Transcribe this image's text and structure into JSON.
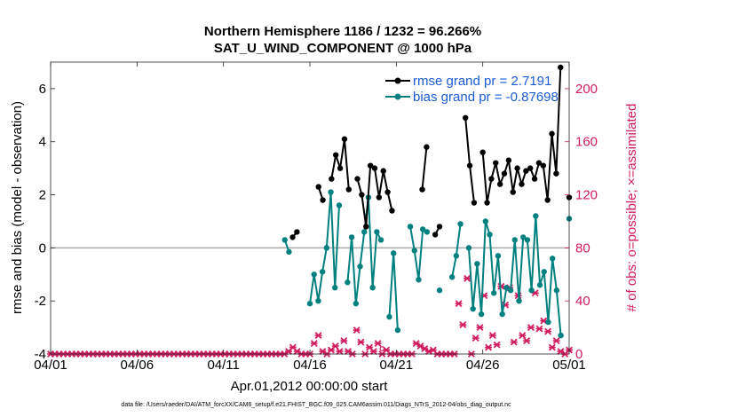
{
  "chart_data": {
    "type": "line",
    "title_line1": "Northern Hemisphere 1186 / 1232 = 96.266%",
    "title_line2": "SAT_U_WIND_COMPONENT @ 1000 hPa",
    "xlabel": "Apr.01,2012 00:00:00 start",
    "ylabel_left": "rmse and bias (model - observation)",
    "ylabel_right": "# of obs: o=possible; ×=assimilated",
    "footnote": "data file: /Users/raeder/DAI/ATM_forcXX/CAM6_setup/f.e21.FHIST_BGC.f09_025.CAM6assim.011/Diags_NTrS_2012-04/obs_diag_output.nc",
    "xlim": [
      0,
      30
    ],
    "ylim_left": [
      -4,
      7
    ],
    "ylim_right": [
      0,
      220
    ],
    "x_ticks": [
      0,
      5,
      10,
      15,
      20,
      25,
      30
    ],
    "x_tick_labels": [
      "04/01",
      "04/06",
      "04/11",
      "04/16",
      "04/21",
      "04/26",
      "05/01"
    ],
    "y_ticks_left": [
      -4,
      -2,
      0,
      2,
      4,
      6
    ],
    "y_tick_labels_left": [
      "-4",
      "-2",
      "0",
      "2",
      "4",
      "6"
    ],
    "y_ticks_right": [
      0,
      40,
      80,
      120,
      160,
      200
    ],
    "y_tick_labels_right": [
      "0",
      "40",
      "80",
      "120",
      "160",
      "200"
    ],
    "colors": {
      "rmse": "#000000",
      "bias": "#00807f",
      "obs": "#d11c5f",
      "legend_text": "#1a5bd6",
      "zero_line": "#aaaaaa"
    },
    "series": [
      {
        "name": "rmse grand pr = 2.7191",
        "values": [
          null,
          null,
          null,
          null,
          null,
          null,
          null,
          null,
          null,
          null,
          null,
          null,
          null,
          null,
          null,
          null,
          null,
          null,
          null,
          null,
          null,
          null,
          null,
          null,
          null,
          null,
          null,
          null,
          null,
          null,
          null,
          null,
          null,
          null,
          null,
          null,
          null,
          null,
          null,
          null,
          null,
          null,
          null,
          null,
          null,
          null,
          null,
          null,
          null,
          null,
          null,
          null,
          null,
          null,
          null,
          null,
          0.4,
          0.6,
          null,
          null,
          null,
          null,
          2.3,
          1.8,
          null,
          2.6,
          3.5,
          3.0,
          4.1,
          2.2,
          null,
          2.6,
          2.0,
          0.8,
          3.1,
          3.0,
          1.9,
          2.9,
          2.1,
          1.4,
          null,
          null,
          null,
          null,
          null,
          null,
          2.2,
          3.8,
          null,
          0.5,
          0.8,
          null,
          null,
          null,
          null,
          null,
          4.9,
          3.1,
          1.7,
          null,
          3.6,
          1.7,
          2.6,
          3.2,
          2.4,
          2.8,
          3.3,
          2.1,
          3.0,
          2.4,
          2.9,
          3.0,
          2.6,
          3.2,
          3.1,
          1.8,
          4.3,
          2.8,
          6.8,
          null,
          1.9
        ]
      },
      {
        "name": "bias grand pr = -0.87698",
        "values": [
          null,
          null,
          null,
          null,
          null,
          null,
          null,
          null,
          null,
          null,
          null,
          null,
          null,
          null,
          null,
          null,
          null,
          null,
          null,
          null,
          null,
          null,
          null,
          null,
          null,
          null,
          null,
          null,
          null,
          null,
          null,
          null,
          null,
          null,
          null,
          null,
          null,
          null,
          null,
          null,
          null,
          null,
          null,
          null,
          null,
          null,
          null,
          null,
          null,
          null,
          null,
          null,
          null,
          null,
          null,
          null,
          0.3,
          -0.15,
          null,
          null,
          null,
          null,
          -2.1,
          -1.0,
          -2.0,
          -0.9,
          0.0,
          2.1,
          -1.5,
          1.6,
          null,
          -1.3,
          0.4,
          -2.1,
          -0.7,
          0.6,
          1.9,
          -1.5,
          0.6,
          0.3,
          null,
          -2.6,
          -0.2,
          -3.1,
          null,
          null,
          0.8,
          -0.1,
          -1.2,
          0.7,
          0.6,
          null,
          null,
          -1.6,
          null,
          null,
          -1.1,
          -0.3,
          0.9,
          null,
          0.0,
          -2.3,
          -0.6,
          -2.5,
          1.0,
          0.5,
          -1.7,
          -0.3,
          -2.5,
          -1.5,
          -1.6,
          0.3,
          -2.0,
          0.4,
          0.3,
          -1.6,
          1.2,
          -1.4,
          -0.9,
          -2.8,
          -0.4,
          -1.6,
          -3.3,
          null,
          1.1
        ]
      }
    ],
    "obs_assimilated": [
      0,
      0,
      0,
      0,
      0,
      0,
      0,
      0,
      0,
      0,
      0,
      0,
      0,
      0,
      0,
      0,
      0,
      0,
      0,
      0,
      0,
      0,
      0,
      0,
      0,
      0,
      0,
      0,
      0,
      0,
      0,
      0,
      0,
      0,
      0,
      0,
      0,
      0,
      0,
      0,
      0,
      0,
      0,
      0,
      0,
      0,
      0,
      0,
      0,
      0,
      0,
      0,
      0,
      0,
      0,
      0,
      2,
      5,
      2,
      0,
      0,
      0,
      8,
      14,
      2,
      0,
      3,
      6,
      2,
      10,
      2,
      0,
      18,
      9,
      0,
      5,
      2,
      8,
      0,
      3,
      0,
      0,
      0,
      0,
      0,
      0,
      8,
      6,
      4,
      2,
      3,
      0,
      0,
      0,
      0,
      0,
      38,
      22,
      57,
      0,
      12,
      20,
      44,
      5,
      14,
      7,
      51,
      37,
      50,
      9,
      44,
      14,
      10,
      20,
      46,
      19,
      25,
      17,
      5,
      10,
      2,
      0,
      3
    ],
    "obs_possible": [
      0,
      0,
      0,
      0,
      0,
      0,
      0,
      0,
      0,
      0,
      0,
      0,
      0,
      0,
      0,
      0,
      0,
      0,
      0,
      0,
      0,
      0,
      0,
      0,
      0,
      0,
      0,
      0,
      0,
      0,
      0,
      0,
      0,
      0,
      0,
      0,
      0,
      0,
      0,
      0,
      0,
      0,
      0,
      0,
      0,
      0,
      0,
      0,
      0,
      0,
      0,
      0,
      0,
      0,
      0,
      0,
      2,
      5,
      2,
      0,
      0,
      0,
      8,
      14,
      2,
      0,
      3,
      6,
      2,
      10,
      2,
      0,
      18,
      9,
      0,
      5,
      2,
      8,
      4,
      3,
      0,
      0,
      0,
      0,
      0,
      0,
      8,
      6,
      4,
      2,
      3,
      0,
      0,
      0,
      0,
      0,
      38,
      22,
      57,
      0,
      12,
      20,
      44,
      5,
      14,
      7,
      51,
      37,
      50,
      9,
      44,
      14,
      10,
      20,
      46,
      19,
      25,
      17,
      5,
      10,
      2,
      0,
      3
    ]
  }
}
